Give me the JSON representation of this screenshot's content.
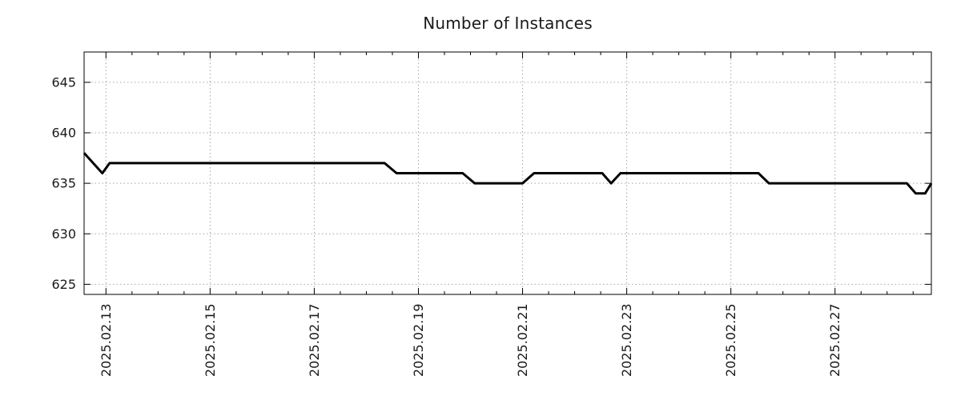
{
  "colors": {
    "line": "#000000",
    "grid": "#a6a6a6",
    "axis": "#000000",
    "text": "#1a1a1a",
    "background": "#ffffff"
  },
  "chart_data": {
    "type": "line",
    "title": "Number of Instances",
    "xlabel": "",
    "ylabel": "",
    "x_unit": "date (fractional day of February 2025)",
    "x_tick_labels": [
      "2025.02.13",
      "2025.02.15",
      "2025.02.17",
      "2025.02.19",
      "2025.02.21",
      "2025.02.23",
      "2025.02.25",
      "2025.02.27"
    ],
    "x_tick_days": [
      13,
      15,
      17,
      19,
      21,
      23,
      25,
      27
    ],
    "x_minor_tick_interval_days": 0.5,
    "xlim_days": [
      12.58,
      28.85
    ],
    "y_ticks": [
      625,
      630,
      635,
      640,
      645
    ],
    "ylim": [
      624,
      648
    ],
    "grid": true,
    "legend": false,
    "series": [
      {
        "name": "instances",
        "points": [
          [
            12.58,
            638
          ],
          [
            12.93,
            636
          ],
          [
            13.07,
            637
          ],
          [
            18.35,
            637
          ],
          [
            18.58,
            636
          ],
          [
            19.85,
            636
          ],
          [
            20.08,
            635
          ],
          [
            21.0,
            635
          ],
          [
            21.22,
            636
          ],
          [
            22.53,
            636
          ],
          [
            22.7,
            635
          ],
          [
            22.88,
            636
          ],
          [
            25.53,
            636
          ],
          [
            25.73,
            635
          ],
          [
            28.38,
            635
          ],
          [
            28.55,
            634
          ],
          [
            28.73,
            634
          ],
          [
            28.85,
            635
          ]
        ]
      }
    ]
  }
}
